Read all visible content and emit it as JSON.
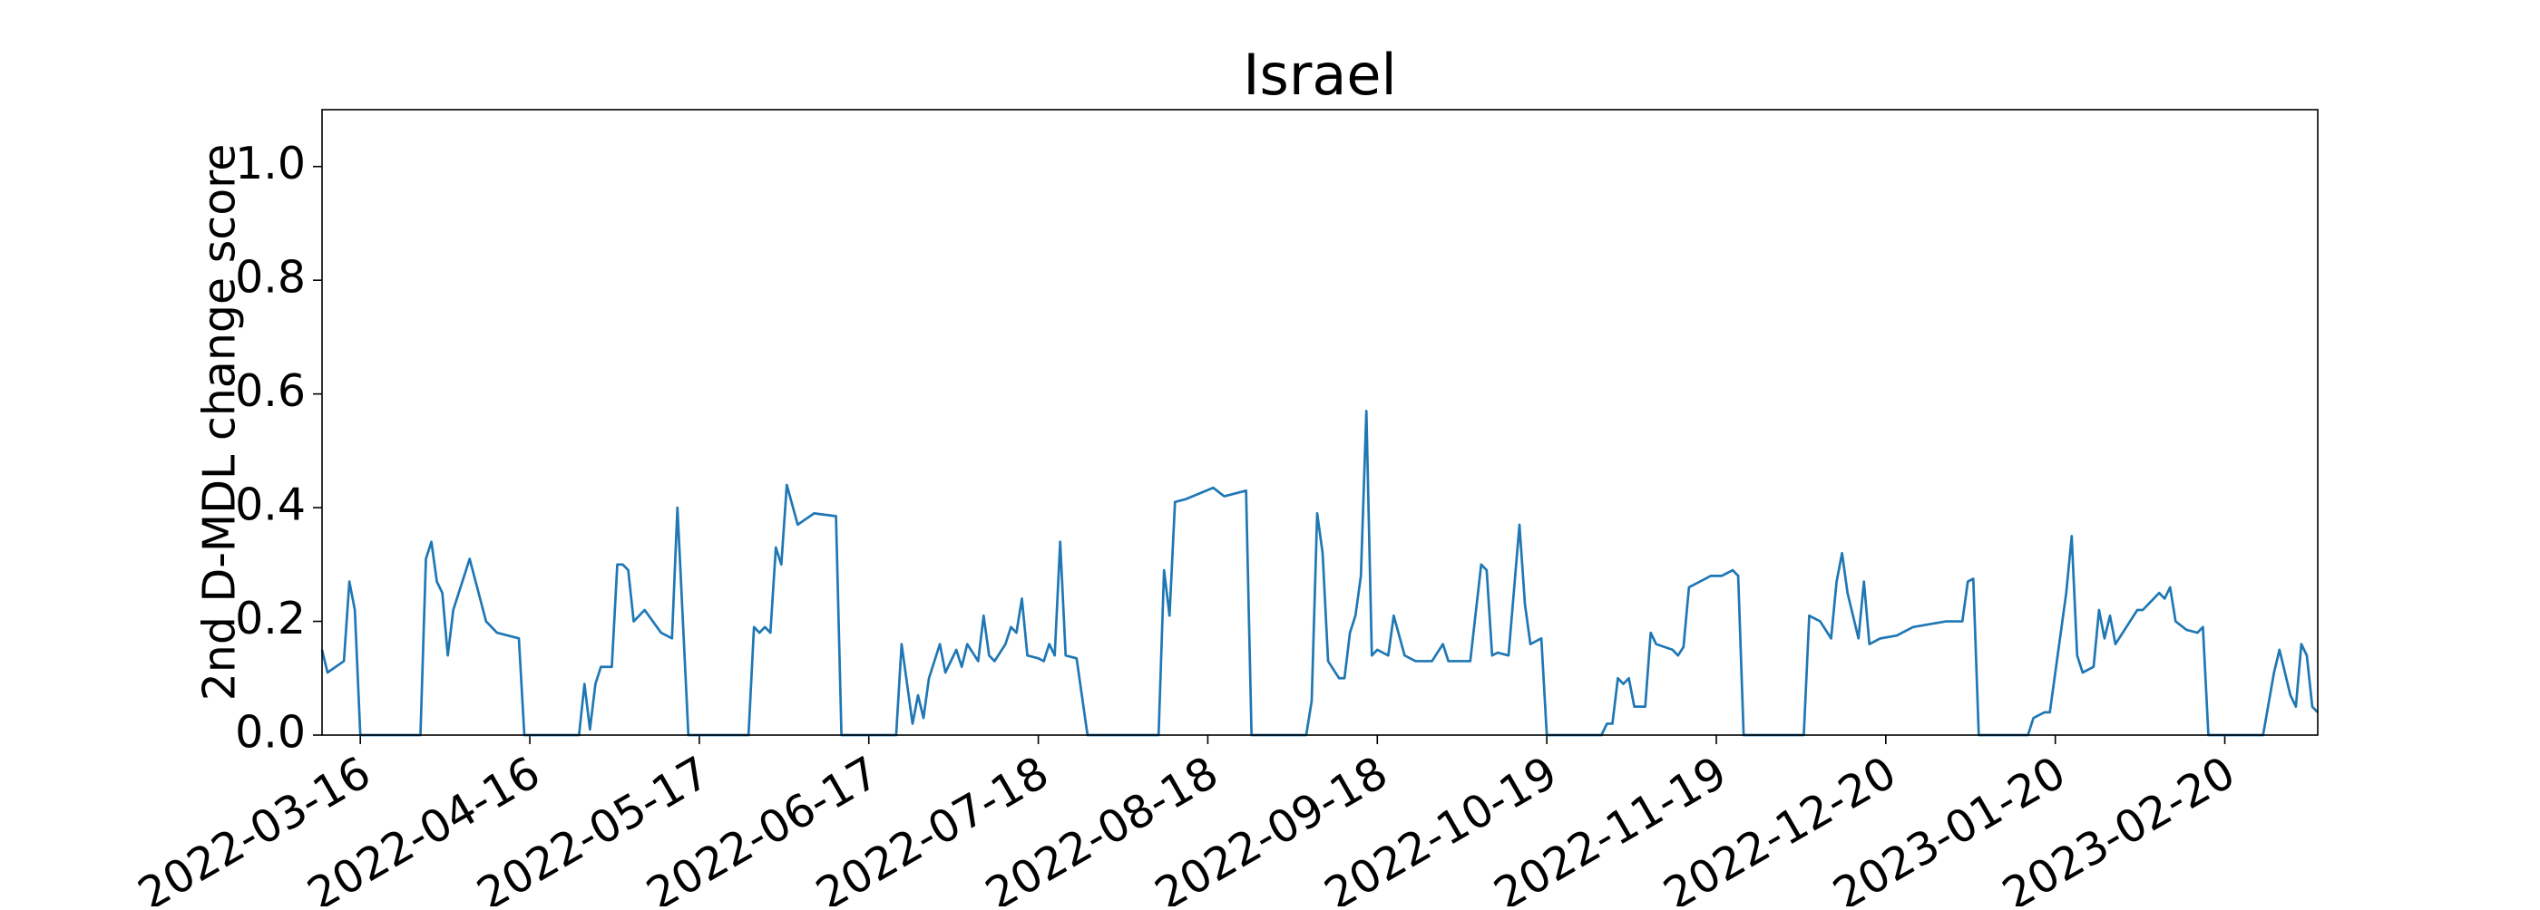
{
  "chart_data": {
    "type": "line",
    "title": "Israel",
    "ylabel": "2nd D-MDL change score",
    "xlim": [
      "2022-03-09",
      "2023-03-09"
    ],
    "ylim": [
      0,
      1.1
    ],
    "xticks": [
      "2022-03-16",
      "2022-04-16",
      "2022-05-17",
      "2022-06-17",
      "2022-07-18",
      "2022-08-18",
      "2022-09-18",
      "2022-10-19",
      "2022-11-19",
      "2022-12-20",
      "2023-01-20",
      "2023-02-20"
    ],
    "yticks": [
      {
        "value": 0,
        "label": "0.0"
      },
      0.2,
      0.4,
      0.6,
      0.8,
      {
        "value": 1,
        "label": "1.0"
      }
    ],
    "series": [
      {
        "color": "#1f77b4",
        "x": [
          "2022-03-09",
          "2022-03-10",
          "2022-03-13",
          "2022-03-14",
          "2022-03-15",
          "2022-03-16",
          "2022-03-27",
          "2022-03-28",
          "2022-03-29",
          "2022-03-30",
          "2022-03-31",
          "2022-04-01",
          "2022-04-02",
          "2022-04-05",
          "2022-04-08",
          "2022-04-10",
          "2022-04-12",
          "2022-04-14",
          "2022-04-15",
          "2022-04-25",
          "2022-04-26",
          "2022-04-27",
          "2022-04-28",
          "2022-04-29",
          "2022-05-01",
          "2022-05-02",
          "2022-05-03",
          "2022-05-04",
          "2022-05-05",
          "2022-05-07",
          "2022-05-10",
          "2022-05-12",
          "2022-05-13",
          "2022-05-15",
          "2022-05-26",
          "2022-05-27",
          "2022-05-28",
          "2022-05-29",
          "2022-05-30",
          "2022-05-31",
          "2022-06-01",
          "2022-06-02",
          "2022-06-04",
          "2022-06-07",
          "2022-06-11",
          "2022-06-12",
          "2022-06-22",
          "2022-06-23",
          "2022-06-25",
          "2022-06-26",
          "2022-06-27",
          "2022-06-28",
          "2022-06-30",
          "2022-07-01",
          "2022-07-03",
          "2022-07-04",
          "2022-07-05",
          "2022-07-07",
          "2022-07-08",
          "2022-07-09",
          "2022-07-10",
          "2022-07-12",
          "2022-07-13",
          "2022-07-14",
          "2022-07-15",
          "2022-07-16",
          "2022-07-18",
          "2022-07-19",
          "2022-07-20",
          "2022-07-21",
          "2022-07-22",
          "2022-07-23",
          "2022-07-25",
          "2022-07-27",
          "2022-08-06",
          "2022-08-09",
          "2022-08-10",
          "2022-08-11",
          "2022-08-12",
          "2022-08-14",
          "2022-08-19",
          "2022-08-21",
          "2022-08-25",
          "2022-08-26",
          "2022-09-05",
          "2022-09-06",
          "2022-09-07",
          "2022-09-08",
          "2022-09-09",
          "2022-09-11",
          "2022-09-12",
          "2022-09-13",
          "2022-09-14",
          "2022-09-15",
          "2022-09-16",
          "2022-09-17",
          "2022-09-18",
          "2022-09-20",
          "2022-09-21",
          "2022-09-23",
          "2022-09-25",
          "2022-09-28",
          "2022-09-30",
          "2022-10-01",
          "2022-10-04",
          "2022-10-05",
          "2022-10-07",
          "2022-10-08",
          "2022-10-09",
          "2022-10-10",
          "2022-10-12",
          "2022-10-14",
          "2022-10-15",
          "2022-10-16",
          "2022-10-18",
          "2022-10-19",
          "2022-10-29",
          "2022-10-30",
          "2022-10-31",
          "2022-11-01",
          "2022-11-02",
          "2022-11-03",
          "2022-11-04",
          "2022-11-06",
          "2022-11-07",
          "2022-11-08",
          "2022-11-11",
          "2022-11-12",
          "2022-11-13",
          "2022-11-14",
          "2022-11-16",
          "2022-11-18",
          "2022-11-20",
          "2022-11-22",
          "2022-11-23",
          "2022-11-24",
          "2022-12-05",
          "2022-12-06",
          "2022-12-08",
          "2022-12-10",
          "2022-12-11",
          "2022-12-12",
          "2022-12-13",
          "2022-12-15",
          "2022-12-16",
          "2022-12-17",
          "2022-12-19",
          "2022-12-22",
          "2022-12-25",
          "2022-12-28",
          "2022-12-31",
          "2023-01-03",
          "2023-01-04",
          "2023-01-05",
          "2023-01-06",
          "2023-01-15",
          "2023-01-16",
          "2023-01-18",
          "2023-01-19",
          "2023-01-22",
          "2023-01-23",
          "2023-01-24",
          "2023-01-25",
          "2023-01-27",
          "2023-01-28",
          "2023-01-29",
          "2023-01-30",
          "2023-01-31",
          "2023-02-02",
          "2023-02-04",
          "2023-02-05",
          "2023-02-07",
          "2023-02-08",
          "2023-02-09",
          "2023-02-10",
          "2023-02-11",
          "2023-02-13",
          "2023-02-15",
          "2023-02-16",
          "2023-02-17",
          "2023-02-27",
          "2023-03-01",
          "2023-03-02",
          "2023-03-04",
          "2023-03-05",
          "2023-03-06",
          "2023-03-07",
          "2023-03-08",
          "2023-03-09"
        ],
        "values": [
          0.15,
          0.11,
          0.13,
          0.27,
          0.22,
          0,
          0,
          0.31,
          0.34,
          0.27,
          0.25,
          0.14,
          0.22,
          0.31,
          0.2,
          0.18,
          0.175,
          0.17,
          0,
          0,
          0.09,
          0.01,
          0.09,
          0.12,
          0.12,
          0.3,
          0.3,
          0.29,
          0.2,
          0.22,
          0.18,
          0.17,
          0.4,
          0,
          0,
          0.19,
          0.18,
          0.19,
          0.18,
          0.33,
          0.3,
          0.44,
          0.37,
          0.39,
          0.385,
          0,
          0,
          0.16,
          0.02,
          0.07,
          0.03,
          0.1,
          0.16,
          0.11,
          0.15,
          0.12,
          0.16,
          0.13,
          0.21,
          0.14,
          0.13,
          0.16,
          0.19,
          0.18,
          0.24,
          0.14,
          0.135,
          0.13,
          0.16,
          0.14,
          0.34,
          0.14,
          0.135,
          0,
          0,
          0,
          0.29,
          0.21,
          0.41,
          0.415,
          0.435,
          0.42,
          0.43,
          0,
          0,
          0.06,
          0.39,
          0.32,
          0.13,
          0.1,
          0.1,
          0.18,
          0.21,
          0.28,
          0.57,
          0.14,
          0.15,
          0.14,
          0.21,
          0.14,
          0.13,
          0.13,
          0.16,
          0.13,
          0.13,
          0.13,
          0.3,
          0.29,
          0.14,
          0.145,
          0.14,
          0.37,
          0.23,
          0.16,
          0.17,
          0,
          0,
          0.02,
          0.02,
          0.1,
          0.09,
          0.1,
          0.05,
          0.05,
          0.18,
          0.16,
          0.15,
          0.14,
          0.155,
          0.26,
          0.27,
          0.28,
          0.28,
          0.29,
          0.28,
          0,
          0,
          0.21,
          0.2,
          0.17,
          0.27,
          0.32,
          0.25,
          0.17,
          0.27,
          0.16,
          0.17,
          0.175,
          0.19,
          0.195,
          0.2,
          0.2,
          0.27,
          0.275,
          0,
          0,
          0.03,
          0.04,
          0.04,
          0.25,
          0.35,
          0.14,
          0.11,
          0.12,
          0.22,
          0.17,
          0.21,
          0.16,
          0.19,
          0.22,
          0.22,
          0.24,
          0.25,
          0.24,
          0.26,
          0.2,
          0.185,
          0.18,
          0.19,
          0,
          0,
          0.11,
          0.15,
          0.07,
          0.05,
          0.16,
          0.14,
          0.05,
          0.04
        ]
      }
    ]
  }
}
